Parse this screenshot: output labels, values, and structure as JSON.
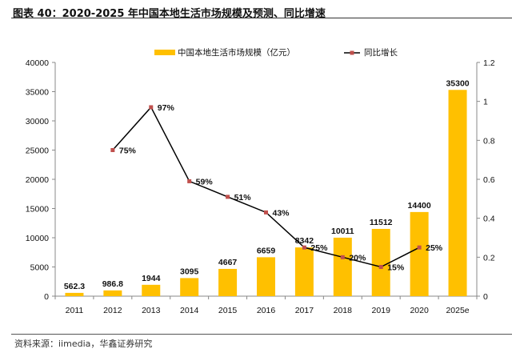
{
  "title": "图表 40：2020-2025 年中国本地生活市场规模及预测、同比增速",
  "source": "资料来源：iimedia，华鑫证券研究",
  "chart_data": {
    "type": "bar+line",
    "categories": [
      "2011",
      "2012",
      "2013",
      "2014",
      "2015",
      "2016",
      "2017",
      "2018",
      "2019",
      "2020",
      "2025e"
    ],
    "series": [
      {
        "name": "中国本地生活市场规模（亿元）",
        "type": "bar",
        "axis": "left",
        "color": "#FFC000",
        "values": [
          562.3,
          986.8,
          1944,
          3095,
          4667,
          6659,
          8342,
          10011,
          11512,
          14400,
          35300
        ],
        "labels": [
          "562.3",
          "986.8",
          "1944",
          "3095",
          "4667",
          "6659",
          "8342",
          "10011",
          "11512",
          "14400",
          "35300"
        ]
      },
      {
        "name": "同比增长",
        "type": "line",
        "axis": "right",
        "color": "#000000",
        "marker_color": "#C0504D",
        "values": [
          null,
          0.75,
          0.97,
          0.59,
          0.51,
          0.43,
          0.25,
          0.2,
          0.15,
          0.25,
          null
        ],
        "labels": [
          null,
          "75%",
          "97%",
          "59%",
          "51%",
          "43%",
          "25%",
          "20%",
          "15%",
          "25%",
          null
        ]
      }
    ],
    "left_axis": {
      "ylim": [
        0,
        40000
      ],
      "ticks": [
        "0",
        "5000",
        "10000",
        "15000",
        "20000",
        "25000",
        "30000",
        "35000",
        "40000"
      ]
    },
    "right_axis": {
      "ylim": [
        0,
        1.2
      ],
      "ticks": [
        "0",
        "0.2",
        "0.4",
        "0.6",
        "0.8",
        "1",
        "1.2"
      ]
    },
    "legend": "top",
    "grid": false
  }
}
